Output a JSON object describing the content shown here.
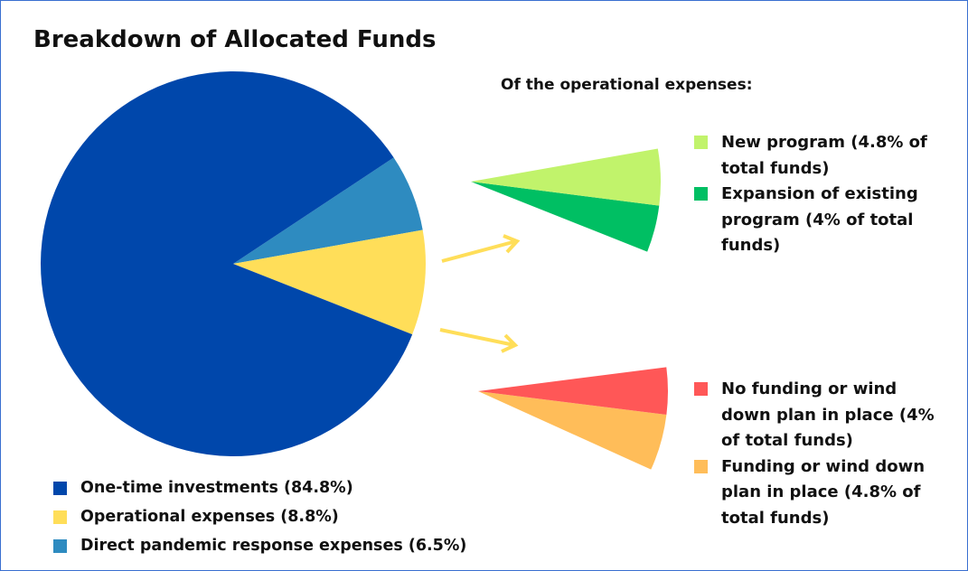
{
  "chart_data": [
    {
      "type": "pie",
      "title": "Breakdown of Allocated Funds",
      "categories": [
        "One-time investments (84.8%)",
        "Operational expenses (8.8%)",
        "Direct pandemic response expenses (6.5%)"
      ],
      "values": [
        84.8,
        8.8,
        6.5
      ],
      "colors": [
        "#0047ab",
        "#ffde59",
        "#2e8bc0"
      ]
    },
    {
      "type": "pie",
      "title": "Of the operational expenses:",
      "categories": [
        "New program (4.8% of total funds)",
        "Expansion of existing program (4% of total funds)"
      ],
      "values": [
        4.8,
        4
      ],
      "colors": [
        "#c1f36b",
        "#00bf63"
      ]
    },
    {
      "type": "pie",
      "categories": [
        "No funding or wind down plan in place (4% of total funds)",
        "Funding or wind down plan in place (4.8% of total funds)"
      ],
      "values": [
        4,
        4.8
      ],
      "colors": [
        "#ff5757",
        "#ffbd59"
      ]
    }
  ]
}
